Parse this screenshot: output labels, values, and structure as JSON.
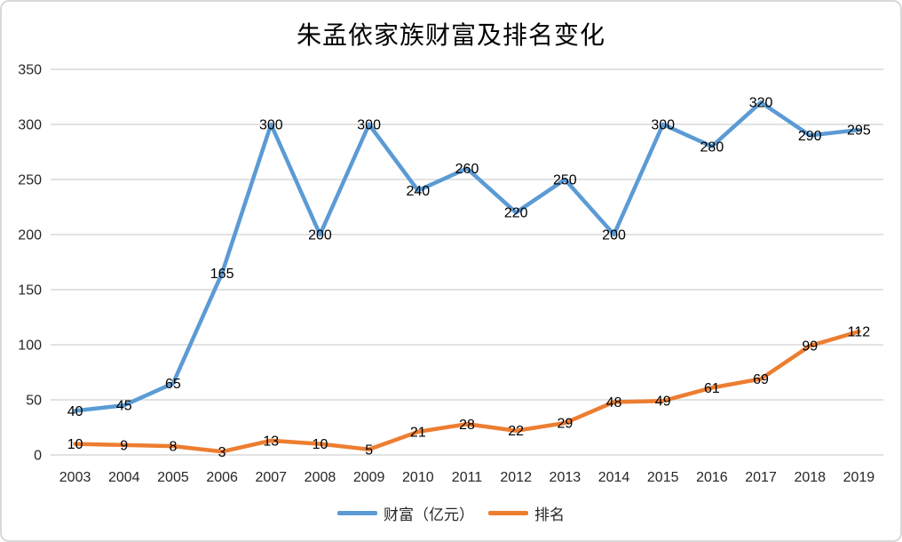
{
  "chart_data": {
    "type": "line",
    "title": "朱孟依家族财富及排名变化",
    "categories": [
      "2003",
      "2004",
      "2005",
      "2006",
      "2007",
      "2008",
      "2009",
      "2010",
      "2011",
      "2012",
      "2013",
      "2014",
      "2015",
      "2016",
      "2017",
      "2018",
      "2019"
    ],
    "series": [
      {
        "name": "财富（亿元）",
        "key": "wealth",
        "color": "#5B9BD5",
        "values": [
          40,
          45,
          65,
          165,
          300,
          200,
          300,
          240,
          260,
          220,
          250,
          200,
          300,
          280,
          320,
          290,
          295
        ]
      },
      {
        "name": "排名",
        "key": "rank",
        "color": "#ED7D31",
        "values": [
          10,
          9,
          8,
          3,
          13,
          10,
          5,
          21,
          28,
          22,
          29,
          48,
          49,
          61,
          69,
          99,
          112
        ]
      }
    ],
    "xlabel": "",
    "ylabel": "",
    "ylim": [
      0,
      350
    ],
    "y_ticks": [
      0,
      50,
      100,
      150,
      200,
      250,
      300,
      350
    ],
    "grid": true,
    "data_labels": true,
    "legend_position": "bottom"
  },
  "colors": {
    "background": "#FFFFFF",
    "border": "#D9D9D9",
    "gridline": "#D9D9D9",
    "axis_text": "#262626",
    "data_label_text": "#000000"
  }
}
